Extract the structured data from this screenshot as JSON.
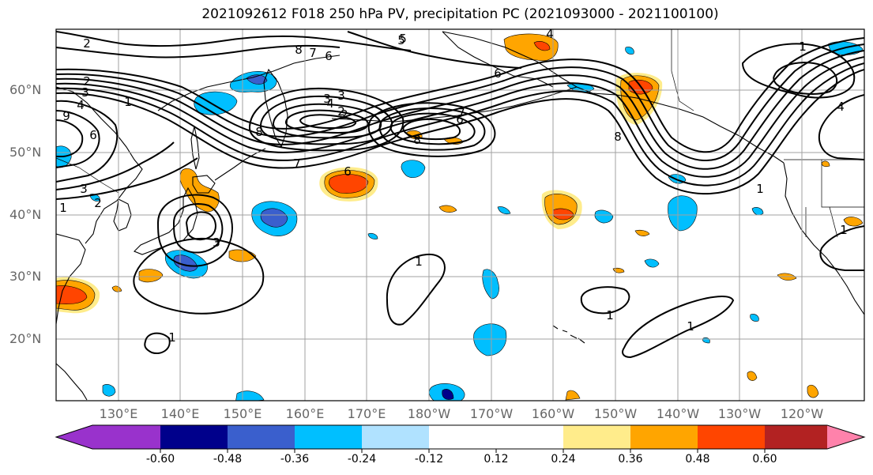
{
  "title": "2021092612 F018 250 hPa PV, precipitation PC (2021093000 - 2021100100)",
  "lat_labels": [
    "60°N",
    "50°N",
    "40°N",
    "30°N",
    "20°N"
  ],
  "lon_labels": [
    "130°E",
    "140°E",
    "150°E",
    "160°E",
    "170°E",
    "180°W",
    "170°W",
    "160°W",
    "150°W",
    "140°W",
    "130°W",
    "120°W"
  ],
  "colorbar": {
    "colors": [
      "#9932CC",
      "#00008B",
      "#3A5FCD",
      "#00BFFF",
      "#B0E2FF",
      "#FFFFFF",
      "#FFFFFF",
      "#FFEC8B",
      "#FFA500",
      "#FF4500",
      "#B22222",
      "#FF82AB"
    ],
    "tick_labels": [
      "-0.60",
      "-0.48",
      "-0.36",
      "-0.24",
      "-0.12",
      "0.12",
      "0.24",
      "0.36",
      "0.48",
      "0.60"
    ]
  },
  "contour_labels": [
    "2",
    "8",
    "7",
    "6",
    "5",
    "4",
    "3",
    "2",
    "1",
    "9",
    "6",
    "3",
    "2",
    "1",
    "7",
    "6",
    "2",
    "8",
    "1",
    "3",
    "1",
    "1",
    "1",
    "1",
    "8",
    "6",
    "4",
    "7",
    "3",
    "4",
    "3",
    "2",
    "8",
    "6",
    "5",
    "1",
    "1",
    "4"
  ]
}
